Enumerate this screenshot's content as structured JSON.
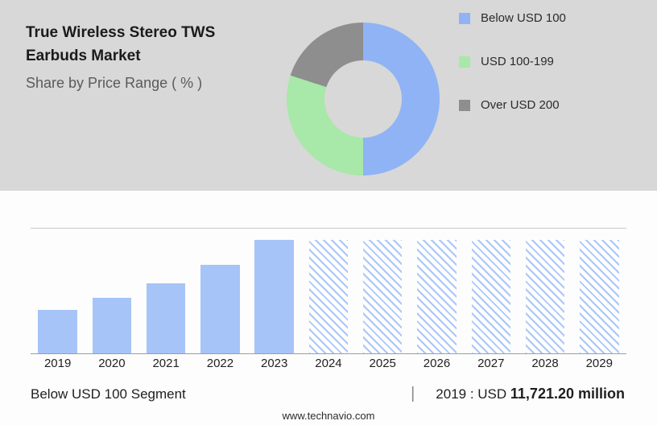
{
  "header": {
    "title_line1": "True Wireless Stereo TWS",
    "title_line2": "Earbuds Market",
    "subtitle": "Share by Price Range ( % )"
  },
  "colors": {
    "panel_bg": "#d8d8d8",
    "pie_blue": "#8fb3f5",
    "pie_green": "#a8e8a8",
    "pie_gray": "#8e8e8e",
    "bar_blue": "#a6c4f7"
  },
  "chart_data": [
    {
      "type": "pie",
      "title": "Share by Price Range ( % )",
      "donut": true,
      "labels": [
        "Below USD 100",
        "USD 100-199",
        "Over USD 200"
      ],
      "values_pct": [
        50,
        30,
        20
      ],
      "colors": [
        "#8fb3f5",
        "#a8e8a8",
        "#8e8e8e"
      ],
      "legend_position": "right",
      "start_angle": "top, clockwise"
    },
    {
      "type": "bar",
      "categories": [
        "2019",
        "2020",
        "2021",
        "2022",
        "2023",
        "2024",
        "2025",
        "2026",
        "2027",
        "2028",
        "2029"
      ],
      "relative_heights": [
        0.39,
        0.49,
        0.62,
        0.78,
        1.0,
        1.0,
        1.0,
        1.0,
        1.0,
        1.0,
        1.0
      ],
      "forecast_start_index": 5,
      "forecast_style": "hatched",
      "known_value": {
        "year": "2019",
        "value_usd_million": "11,721.20"
      },
      "xlabel": "",
      "ylabel": "",
      "grid": false
    }
  ],
  "footer_stats": {
    "segment_label": "Below USD 100 Segment",
    "divider": "|",
    "year_prefix": "2019 : USD",
    "value_bold": "11,721.20 million"
  },
  "site": "www.technavio.com"
}
